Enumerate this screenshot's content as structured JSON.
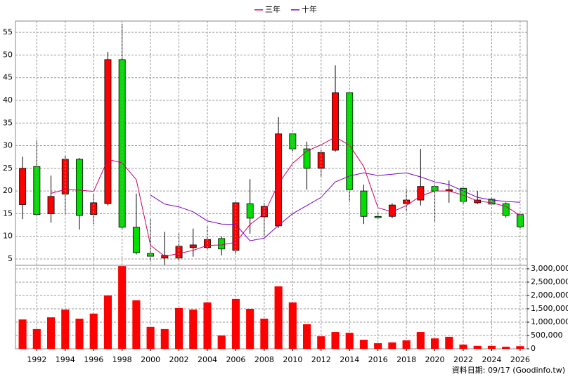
{
  "chart_data": [
    {
      "type": "candlestick",
      "x": [
        1991,
        1992,
        1993,
        1994,
        1995,
        1996,
        1997,
        1998,
        1999,
        2000,
        2001,
        2002,
        2003,
        2004,
        2005,
        2006,
        2007,
        2008,
        2009,
        2010,
        2011,
        2012,
        2013,
        2014,
        2015,
        2016,
        2017,
        2018,
        2019,
        2020,
        2021,
        2022,
        2023,
        2024,
        2025,
        2026
      ],
      "open": [
        17,
        25.4,
        15,
        19.3,
        27,
        14.8,
        17.2,
        49,
        12,
        6.2,
        5.2,
        5.2,
        7.5,
        7.5,
        9.5,
        6.9,
        17.2,
        14.3,
        12.3,
        32.6,
        29.3,
        25,
        29,
        41.7,
        20,
        14.4,
        14.4,
        17.2,
        18,
        21,
        20,
        20.6,
        17.4,
        18.2,
        17.2,
        14.8
      ],
      "high": [
        27.6,
        31.3,
        23.4,
        27.8,
        27.3,
        19.4,
        50.7,
        56.9,
        19.4,
        13.8,
        11,
        10.6,
        11.7,
        12.1,
        10,
        17.5,
        22.6,
        17.4,
        36.3,
        32.8,
        30.9,
        29,
        47.7,
        41.9,
        21.4,
        15.2,
        17.3,
        20.5,
        29.3,
        21.3,
        22.3,
        21.1,
        20,
        18.5,
        17.5,
        15
      ],
      "low": [
        13.8,
        14.4,
        13,
        15,
        11.5,
        12.7,
        16.8,
        11.5,
        6,
        4.4,
        3.7,
        4.5,
        5.5,
        7.2,
        5.8,
        5.9,
        10.6,
        10,
        11.8,
        28.8,
        20.3,
        23,
        28.7,
        17.5,
        12.7,
        13.7,
        14,
        15.7,
        16.8,
        13,
        17.4,
        17.1,
        17.1,
        16.8,
        14.1,
        11.8
      ],
      "close": [
        25,
        14.8,
        18.8,
        27,
        14.6,
        17.4,
        49,
        12,
        6.4,
        5.6,
        5.8,
        7.8,
        8.1,
        9.3,
        7.2,
        17.4,
        14,
        16.6,
        32.6,
        29.3,
        25,
        28.5,
        41.7,
        20.3,
        14.4,
        14.1,
        16.9,
        18,
        21,
        20,
        20.3,
        17.7,
        18,
        17.1,
        14.6,
        12.1
      ],
      "up_color": "#ff0000",
      "down_color": "#00e000",
      "series": [
        {
          "name": "三年",
          "color": "#d0006a",
          "values": [
            null,
            null,
            19.5,
            20.3,
            20.2,
            19.9,
            27,
            26.2,
            22.5,
            8,
            5.6,
            6.2,
            6.9,
            8,
            8.1,
            8.7,
            12.6,
            15,
            21.6,
            26.1,
            28.8,
            30.2,
            31.9,
            30.1,
            25.4,
            16.3,
            15.4,
            16.8,
            18.9,
            20,
            20,
            19.1,
            17.8,
            17.4,
            16.6,
            14.6
          ]
        },
        {
          "name": "十年",
          "color": "#7a00c8",
          "values": [
            null,
            null,
            null,
            null,
            null,
            null,
            null,
            null,
            null,
            19.1,
            17.1,
            16.5,
            15.4,
            13.4,
            12.7,
            12.6,
            9,
            9.6,
            12.4,
            15,
            16.8,
            18.6,
            22,
            23.3,
            24,
            23.4,
            23.7,
            24,
            23.1,
            22,
            21.4,
            20,
            18.6,
            18,
            17.7,
            17.5
          ]
        }
      ],
      "xlim": [
        1990.5,
        2026.5
      ],
      "ylim": [
        3.6,
        57.5
      ],
      "yticks": [
        5,
        10,
        15,
        20,
        25,
        30,
        35,
        40,
        45,
        50,
        55
      ],
      "grid": true
    },
    {
      "type": "bar",
      "x": [
        1991,
        1992,
        1993,
        1994,
        1995,
        1996,
        1997,
        1998,
        1999,
        2000,
        2001,
        2002,
        2003,
        2004,
        2005,
        2006,
        2007,
        2008,
        2009,
        2010,
        2011,
        2012,
        2013,
        2014,
        2015,
        2016,
        2017,
        2018,
        2019,
        2020,
        2021,
        2022,
        2023,
        2024,
        2025,
        2026
      ],
      "values": [
        1100000,
        740000,
        1180000,
        1470000,
        1130000,
        1320000,
        2000000,
        3100000,
        1820000,
        820000,
        740000,
        1530000,
        1470000,
        1740000,
        500000,
        1870000,
        1500000,
        1130000,
        2340000,
        1740000,
        920000,
        470000,
        630000,
        600000,
        340000,
        210000,
        240000,
        320000,
        630000,
        390000,
        450000,
        160000,
        110000,
        110000,
        80000,
        100000
      ],
      "color": "#ff0000",
      "xlim": [
        1990.5,
        2026.5
      ],
      "xticks": [
        1992,
        1994,
        1996,
        1998,
        2000,
        2002,
        2004,
        2006,
        2008,
        2010,
        2012,
        2014,
        2016,
        2018,
        2020,
        2022,
        2024,
        2026
      ],
      "ylim": [
        0,
        3130000
      ],
      "yticks": [
        0,
        {
          "value": 500000,
          "label": "500,000"
        },
        {
          "value": 1000000,
          "label": "1,000,000"
        },
        {
          "value": 1500000,
          "label": "1,500,000"
        },
        {
          "value": 2000000,
          "label": "2,000,000"
        },
        {
          "value": 2500000,
          "label": "2,500,000"
        },
        {
          "value": 3000000,
          "label": "3,000,000"
        }
      ],
      "grid": true,
      "footnote": "資料日期: 09/17 (Goodinfo.tw)"
    }
  ]
}
